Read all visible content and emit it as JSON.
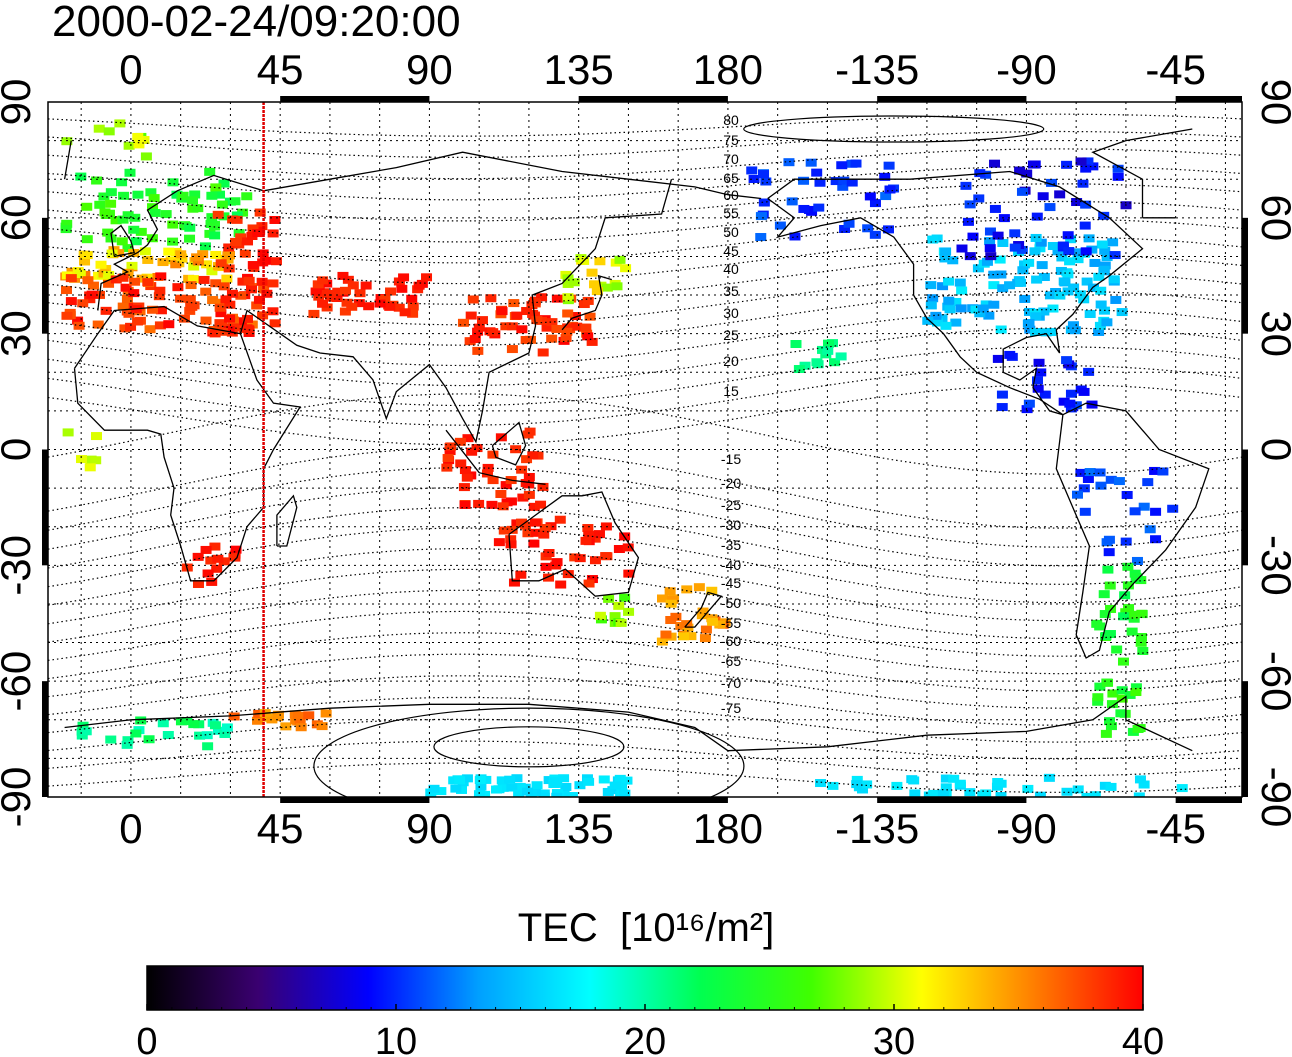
{
  "title": "2000-02-24/09:20:00",
  "map": {
    "lon_ticks": [
      "0",
      "45",
      "90",
      "135",
      "180",
      "-135",
      "-90",
      "-45"
    ],
    "lat_ticks": [
      "90",
      "60",
      "30",
      "0",
      "-30",
      "-60",
      "-90"
    ],
    "lon_range": [
      -25,
      335
    ],
    "lat_range": [
      -90,
      90
    ],
    "meridian_marker_lon": 40,
    "meridian_marker_color": "#e00000",
    "contour_labels_north": [
      "80",
      "75",
      "70",
      "65",
      "60",
      "55",
      "50",
      "45",
      "40",
      "35",
      "30",
      "25",
      "20",
      "15"
    ],
    "contour_labels_south": [
      "-15",
      "-20",
      "-25",
      "-30",
      "-35",
      "-40",
      "-45",
      "-50",
      "-55",
      "-60",
      "-65",
      "-70",
      "-75"
    ]
  },
  "colorbar": {
    "label_main": "TEC",
    "unit": "[10¹⁶/m²]",
    "ticks": [
      "0",
      "10",
      "20",
      "30",
      "40"
    ],
    "range": [
      0,
      40
    ],
    "colors": [
      "#000000",
      "#3a0070",
      "#0000ff",
      "#00a0ff",
      "#00ffff",
      "#00ff50",
      "#40ff00",
      "#ffff00",
      "#ff8000",
      "#ff0000"
    ]
  }
}
